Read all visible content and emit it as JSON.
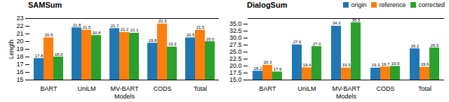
{
  "chart_data": [
    {
      "type": "bar",
      "title": "SAMSum",
      "xlabel": "Models",
      "ylabel": "Length",
      "categories": [
        "BART",
        "UniLM",
        "MV-BART",
        "CODS",
        "Total"
      ],
      "series": [
        {
          "name": "origin",
          "color": "#1f77b4",
          "values": [
            17.8,
            21.8,
            21.7,
            19.8,
            20.5
          ]
        },
        {
          "name": "reference",
          "color": "#ff7f0e",
          "values": [
            20.5,
            21.5,
            21.2,
            22.3,
            21.5
          ]
        },
        {
          "name": "corrected",
          "color": "#2ca02c",
          "values": [
            18.0,
            20.8,
            21.1,
            19.3,
            20.0
          ],
          "value_labels": [
            "18.0",
            "20.8",
            "21.1",
            "19.3",
            "20.0"
          ]
        }
      ],
      "ylim": [
        15,
        23
      ],
      "yticks": [
        15,
        16,
        17,
        18,
        19,
        20,
        21,
        22,
        23
      ],
      "data_labels": true
    },
    {
      "type": "bar",
      "title": "DialogSum",
      "xlabel": "Models",
      "categories": [
        "BART",
        "UniLM",
        "MV-BART",
        "CODS",
        "Total"
      ],
      "series": [
        {
          "name": "origin",
          "color": "#1f77b4",
          "values": [
            18.2,
            27.6,
            34.3,
            19.3,
            26.2
          ]
        },
        {
          "name": "reference",
          "color": "#ff7f0e",
          "values": [
            20.3,
            19.4,
            19.3,
            19.7,
            19.6
          ]
        },
        {
          "name": "corrected",
          "color": "#2ca02c",
          "values": [
            17.9,
            27.0,
            35.5,
            19.9,
            26.5
          ],
          "value_labels": [
            "17.9",
            "27.0",
            "35.5",
            "19.9",
            "26.5"
          ]
        }
      ],
      "ylim": [
        15.0,
        37.0
      ],
      "yticks": [
        {
          "value": 15.0,
          "label": "15.0"
        },
        17.5,
        {
          "value": 20.0,
          "label": "20.0"
        },
        22.5,
        {
          "value": 25.0,
          "label": "25.0"
        },
        27.5,
        {
          "value": 30.0,
          "label": "30.0"
        },
        32.5,
        {
          "value": 35.0,
          "label": "35.0"
        }
      ],
      "data_labels": true,
      "legend": "upper right"
    }
  ]
}
